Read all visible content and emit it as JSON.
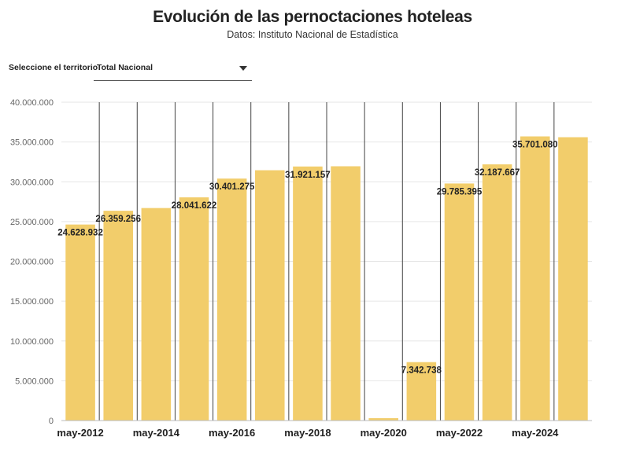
{
  "header": {
    "title": "Evolución de las pernoctaciones hoteleas",
    "subtitle": "Datos: Instituto Nacional de Estadística"
  },
  "filter": {
    "label": "Seleccione el territorio",
    "value": "Total Nacional",
    "icon": "chevron-down-icon"
  },
  "colors": {
    "bar": "#f2cd6b",
    "grid": "#e6e6e6",
    "vline": "#444444"
  },
  "chart_data": {
    "type": "bar",
    "title": "Evolución de las pernoctaciones hoteleas",
    "xlabel": "",
    "ylabel": "",
    "ylim": [
      0,
      40000000
    ],
    "grid": true,
    "yticks": [
      0,
      5000000,
      10000000,
      15000000,
      20000000,
      25000000,
      30000000,
      35000000,
      40000000
    ],
    "ytick_labels": [
      "0",
      "5.000.000",
      "10.000.000",
      "15.000.000",
      "20.000.000",
      "25.000.000",
      "30.000.000",
      "35.000.000",
      "40.000.000"
    ],
    "xtick_labels": [
      "may-2012",
      "may-2014",
      "may-2016",
      "may-2018",
      "may-2020",
      "may-2022",
      "may-2024"
    ],
    "categories": [
      "may-2012",
      "may-2013",
      "may-2014",
      "may-2015",
      "may-2016",
      "may-2017",
      "may-2018",
      "may-2019",
      "may-2020",
      "may-2021",
      "may-2022",
      "may-2023",
      "may-2024",
      "may-2025"
    ],
    "values": [
      24628932,
      26359256,
      26700000,
      28041622,
      30401275,
      31450000,
      31921157,
      31950000,
      300000,
      7342738,
      29785395,
      32187667,
      35701080,
      35600000
    ],
    "data_labels": [
      "24.628.932",
      "26.359.256",
      "",
      "28.041.622",
      "30.401.275",
      "",
      "31.921.157",
      "",
      "",
      "7.342.738",
      "29.785.395",
      "32.187.667",
      "35.701.080",
      ""
    ]
  }
}
